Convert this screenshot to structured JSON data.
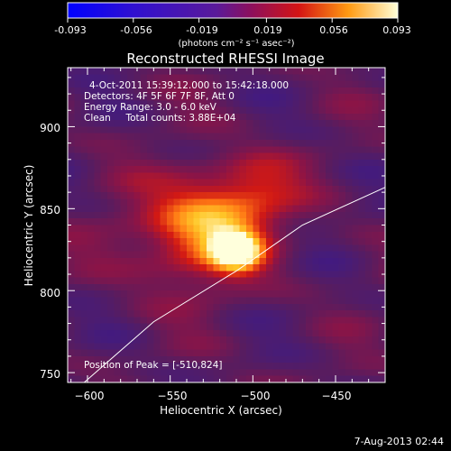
{
  "chart_data": {
    "type": "heatmap",
    "title": "Reconstructed RHESSI Image",
    "colorbar": {
      "ticks": [
        -0.093,
        -0.056,
        -0.019,
        0.019,
        0.056,
        0.093
      ],
      "tick_labels": [
        "-0.093",
        "-0.056",
        "-0.019",
        "0.019",
        "0.056",
        "0.093"
      ],
      "unit_label": "(photons cm⁻² s⁻¹ asec⁻²)",
      "range": [
        -0.093,
        0.093
      ]
    },
    "xlabel": "Heliocentric X (arcsec)",
    "ylabel": "Heliocentric Y (arcsec)",
    "xlim": [
      -612,
      -420
    ],
    "ylim": [
      744,
      936
    ],
    "xticks": [
      -600,
      -550,
      -500,
      -450
    ],
    "xtick_labels": [
      "−600",
      "−550",
      "−500",
      "−450"
    ],
    "yticks": [
      750,
      800,
      850,
      900
    ],
    "ytick_labels": [
      "750",
      "800",
      "850",
      "900"
    ],
    "annotations": [
      "4-Oct-2011 15:39:12.000 to 15:42:18.000",
      "Detectors: 4F 5F 6F 7F 8F, Att 0",
      "Energy Range: 3.0 - 6.0 keV",
      "Clean     Total counts: 3.88E+04"
    ],
    "peak_text": "Position of Peak = [-510,824]",
    "peak": {
      "x": -510,
      "y": 824,
      "value": 0.093
    },
    "limb_line": [
      [
        -602,
        744
      ],
      [
        -560,
        781
      ],
      [
        -510,
        812
      ],
      [
        -470,
        840
      ],
      [
        -420,
        863
      ]
    ],
    "sources": [
      {
        "x": -510,
        "y": 824,
        "sx": 10,
        "sy": 8,
        "amp": 0.085
      },
      {
        "x": -522,
        "y": 845,
        "sx": 24,
        "sy": 20,
        "amp": 0.05
      },
      {
        "x": -540,
        "y": 830,
        "sx": 30,
        "sy": 22,
        "amp": 0.032
      },
      {
        "x": -495,
        "y": 865,
        "sx": 18,
        "sy": 14,
        "amp": 0.022
      }
    ]
  },
  "footer_date": "7-Aug-2013 02:44",
  "colors": {
    "background": "#000000",
    "limb_line": "#ffffff"
  }
}
